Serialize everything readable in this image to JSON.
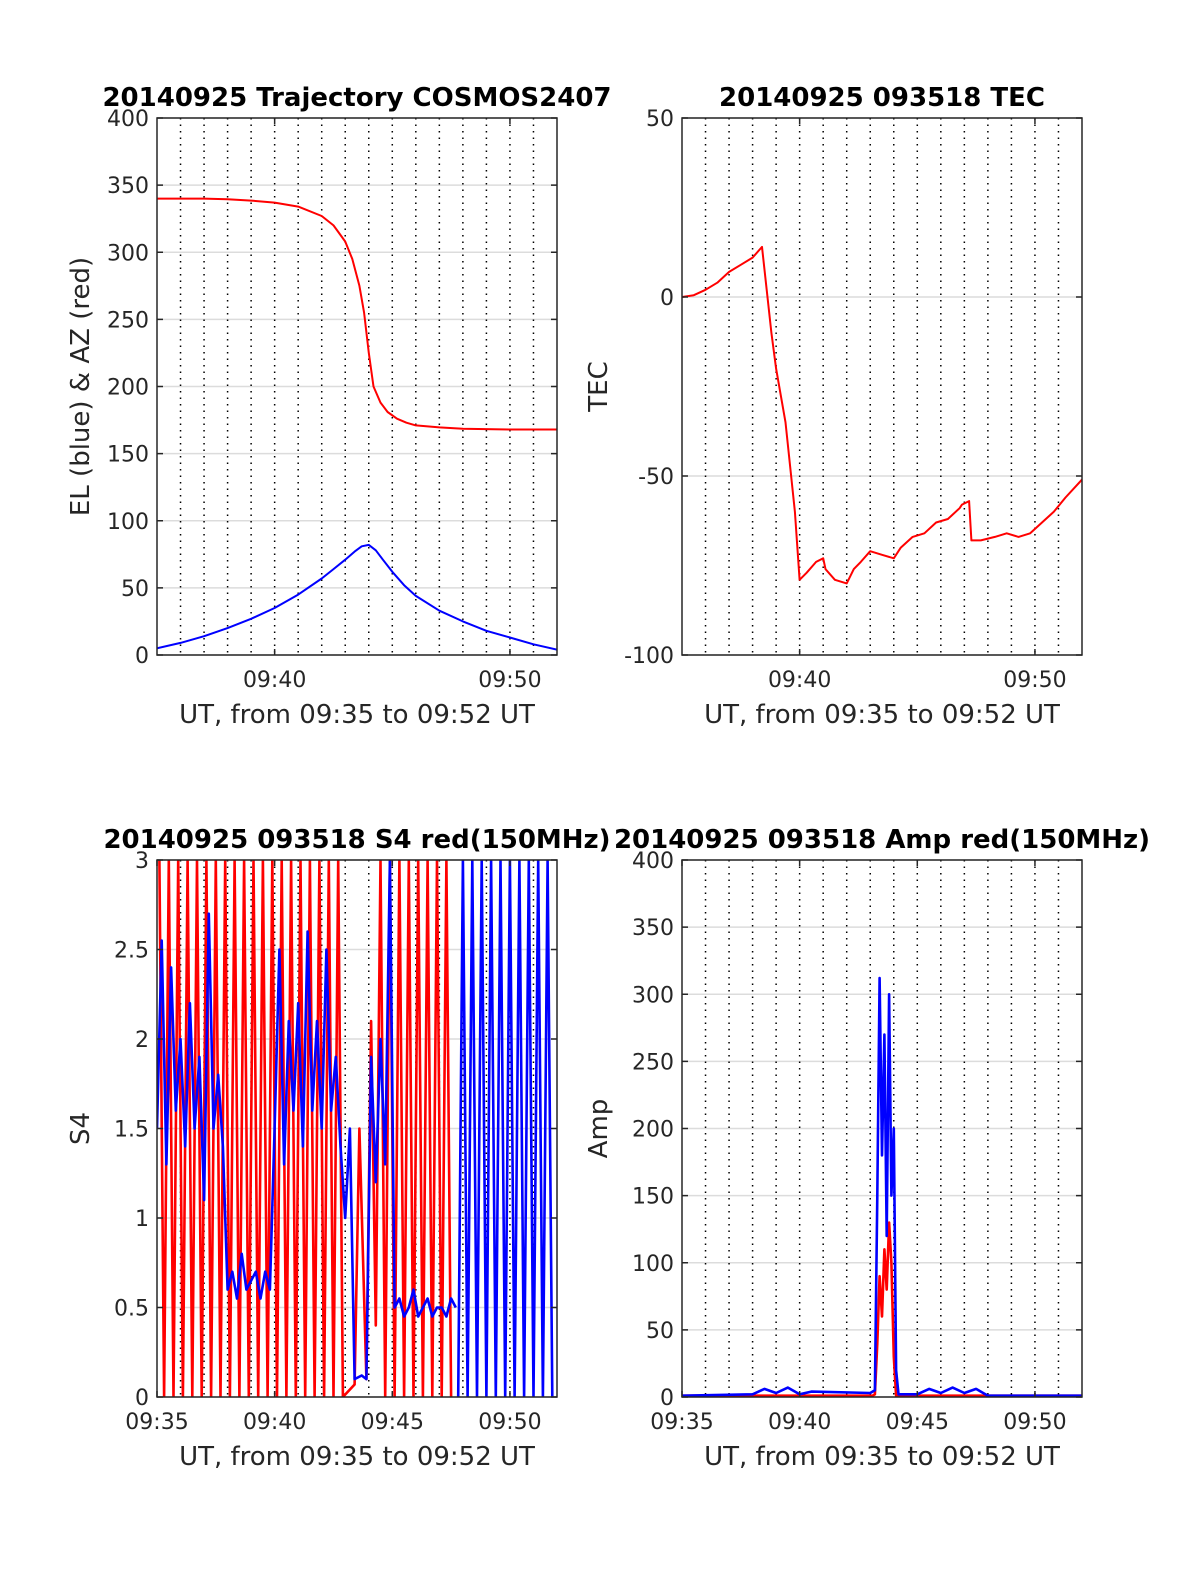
{
  "colors": {
    "red": "#ff0000",
    "blue": "#0000ff",
    "grid": "#dcdcdc",
    "axis": "#262626"
  },
  "chart_data": [
    {
      "type": "line",
      "title": "20140925 Trajectory COSMOS2407",
      "xlabel": "UT, from 09:35 to 09:52 UT",
      "ylabel": "EL (blue) & AZ (red)",
      "xlim": [
        "09:35",
        "09:52"
      ],
      "ylim": [
        0,
        400
      ],
      "x_ticks": [
        "09:40",
        "09:50"
      ],
      "y_ticks": [
        "0",
        "50",
        "100",
        "150",
        "200",
        "250",
        "300",
        "350",
        "400"
      ],
      "x_minor_minutes": [
        36,
        37,
        38,
        39,
        40,
        41,
        42,
        43,
        44,
        45,
        46,
        47,
        48,
        49,
        50,
        51
      ],
      "grid": "horizontal solid, vertical dotted every minute",
      "series": [
        {
          "color": "red",
          "x_minutes": [
            35,
            36,
            37,
            38,
            39,
            40,
            41,
            42,
            42.5,
            43,
            43.3,
            43.6,
            43.8,
            44,
            44.2,
            44.5,
            44.8,
            45.2,
            45.6,
            46,
            47,
            48,
            50,
            52
          ],
          "values": [
            340,
            340,
            340,
            339.5,
            338.5,
            337,
            334,
            327,
            320,
            308,
            295,
            275,
            255,
            225,
            200,
            188,
            181,
            176,
            173,
            171,
            169.5,
            168.5,
            168,
            168
          ]
        },
        {
          "color": "blue",
          "x_minutes": [
            35,
            36,
            37,
            38,
            39,
            40,
            41,
            42,
            42.5,
            43,
            43.4,
            43.7,
            44,
            44.3,
            44.6,
            45,
            45.5,
            46,
            47,
            48,
            49,
            50,
            51,
            52
          ],
          "values": [
            5,
            9,
            14,
            20,
            27,
            35,
            45,
            57,
            64,
            71,
            77,
            81,
            82,
            78,
            71,
            62,
            52,
            44,
            33,
            25,
            18,
            13,
            8,
            4
          ]
        }
      ]
    },
    {
      "type": "line",
      "title": "20140925 093518 TEC",
      "xlabel": "UT, from 09:35 to 09:52 UT",
      "ylabel": "TEC",
      "xlim": [
        "09:35",
        "09:52"
      ],
      "ylim": [
        -100,
        50
      ],
      "x_ticks": [
        "09:40",
        "09:50"
      ],
      "y_ticks": [
        "-100",
        "-50",
        "0",
        "50"
      ],
      "y_tick_values": [
        -100,
        -50,
        0,
        50
      ],
      "x_minor_minutes": [
        36,
        37,
        38,
        39,
        40,
        41,
        42,
        43,
        44,
        45,
        46,
        47,
        48,
        49,
        50,
        51
      ],
      "series": [
        {
          "color": "red",
          "x_minutes": [
            35,
            35.5,
            36,
            36.5,
            37,
            37.5,
            38,
            38.4,
            38.8,
            39,
            39.4,
            39.8,
            40,
            40.3,
            40.7,
            41,
            41.1,
            41.5,
            42,
            42.3,
            42.6,
            43,
            43.5,
            44,
            44.3,
            44.8,
            45.3,
            45.8,
            46.3,
            46.8,
            46.9,
            47.2,
            47.3,
            47.7,
            48.3,
            48.8,
            49.3,
            49.8,
            50.3,
            50.8,
            51.3,
            52
          ],
          "values": [
            0,
            0.5,
            2,
            4,
            7,
            9,
            11,
            14,
            -10,
            -20,
            -35,
            -60,
            -79,
            -77,
            -74,
            -73,
            -76,
            -79,
            -80,
            -76,
            -74,
            -71,
            -72,
            -73,
            -70,
            -67,
            -66,
            -63,
            -62,
            -59,
            -58,
            -57,
            -68,
            -68,
            -67,
            -66,
            -67,
            -66,
            -63,
            -60,
            -56,
            -51
          ]
        }
      ]
    },
    {
      "type": "line",
      "title": "20140925 093518 S4 red(150MHz)",
      "xlabel": "UT, from 09:35 to 09:52 UT",
      "ylabel": "S4",
      "xlim": [
        "09:35",
        "09:52"
      ],
      "ylim": [
        0,
        3
      ],
      "x_ticks": [
        "09:35",
        "09:40",
        "09:45",
        "09:50"
      ],
      "y_ticks": [
        "0",
        "0.5",
        "1",
        "1.5",
        "2",
        "2.5",
        "3"
      ],
      "y_tick_values": [
        0,
        0.5,
        1,
        1.5,
        2,
        2.5,
        3
      ],
      "x_minor_minutes": [
        36,
        37,
        38,
        39,
        40,
        41,
        42,
        43,
        44,
        45,
        46,
        47,
        48,
        49,
        50,
        51
      ],
      "series": [
        {
          "color": "red",
          "x_minutes": [
            35.1,
            35.3,
            35.5,
            35.7,
            35.9,
            36.1,
            36.3,
            36.5,
            36.7,
            36.9,
            37.1,
            37.3,
            37.5,
            37.7,
            37.9,
            38.1,
            38.3,
            38.5,
            38.7,
            38.9,
            39.1,
            39.3,
            39.5,
            39.7,
            39.9,
            40.1,
            40.3,
            40.5,
            40.7,
            40.9,
            41.1,
            41.3,
            41.5,
            41.7,
            41.9,
            42.1,
            42.3,
            42.5,
            42.7,
            42.9,
            43.4,
            43.6,
            43.9,
            44.1,
            44.3,
            44.5,
            44.7,
            44.9,
            45.1,
            45.3,
            45.5,
            45.7,
            45.9,
            46.1,
            46.3,
            46.5,
            46.7,
            46.9,
            47.1,
            47.3,
            47.5
          ],
          "values": [
            3,
            0,
            3,
            0,
            3,
            0,
            3,
            0,
            3,
            0,
            3,
            0,
            3,
            0,
            3,
            0,
            3,
            0,
            3,
            0,
            3,
            0,
            3,
            0,
            3,
            0,
            3,
            0,
            3,
            0,
            3,
            0,
            3,
            0,
            3,
            0,
            3,
            0,
            3,
            0,
            0.07,
            1.5,
            0.1,
            2.1,
            0.4,
            3,
            0,
            3,
            0,
            3,
            0,
            3,
            0,
            3,
            0,
            3,
            0,
            3,
            0,
            3,
            0
          ]
        },
        {
          "color": "blue",
          "x_minutes": [
            35,
            35.2,
            35.4,
            35.6,
            35.8,
            36,
            36.2,
            36.4,
            36.6,
            36.8,
            37,
            37.2,
            37.4,
            37.6,
            37.8,
            38,
            38.2,
            38.4,
            38.6,
            38.8,
            39,
            39.2,
            39.4,
            39.6,
            39.8,
            40,
            40.2,
            40.4,
            40.6,
            40.8,
            41,
            41.2,
            41.4,
            41.6,
            41.8,
            42,
            42.2,
            42.4,
            42.6,
            42.8,
            43,
            43.2,
            43.4,
            43.7,
            43.9,
            44.1,
            44.3,
            44.5,
            44.7,
            44.9,
            45.1,
            45.3,
            45.5,
            45.7,
            45.9,
            46.1,
            46.3,
            46.5,
            46.7,
            46.9,
            47.1,
            47.3,
            47.5,
            47.7
          ],
          "values": [
            1.5,
            2.55,
            1.3,
            2.4,
            1.6,
            2.0,
            1.4,
            2.2,
            1.5,
            1.9,
            1.1,
            2.7,
            1.5,
            1.8,
            1.4,
            0.6,
            0.7,
            0.55,
            0.8,
            0.6,
            0.65,
            0.7,
            0.55,
            0.7,
            0.6,
            1.5,
            2.5,
            1.3,
            2.1,
            1.6,
            2.2,
            1.4,
            2.6,
            1.6,
            2.1,
            1.5,
            2.5,
            1.6,
            1.9,
            1.4,
            1.0,
            1.5,
            0.1,
            0.12,
            0.1,
            1.9,
            1.2,
            2.0,
            1.3,
            3.0,
            0.5,
            0.55,
            0.45,
            0.5,
            0.6,
            0.45,
            0.5,
            0.55,
            0.45,
            0.5,
            0.5,
            0.45,
            0.55,
            0.5
          ]
        },
        {
          "color": "blue",
          "x_minutes": [
            47.8,
            48,
            48.2,
            48.4,
            48.6,
            48.8,
            49,
            49.2,
            49.4,
            49.6,
            49.8,
            50,
            50.2,
            50.4,
            50.6,
            50.8,
            51,
            51.2,
            51.4,
            51.6,
            51.8
          ],
          "values": [
            0,
            3,
            0,
            3,
            0,
            3,
            0,
            3,
            0,
            3,
            0,
            3,
            0,
            3,
            0,
            3,
            0,
            3,
            0,
            3,
            0
          ]
        }
      ]
    },
    {
      "type": "line",
      "title": "20140925 093518 Amp red(150MHz)",
      "xlabel": "UT, from 09:35 to 09:52 UT",
      "ylabel": "Amp",
      "xlim": [
        "09:35",
        "09:52"
      ],
      "ylim": [
        0,
        400
      ],
      "x_ticks": [
        "09:35",
        "09:40",
        "09:45",
        "09:50"
      ],
      "y_ticks": [
        "0",
        "50",
        "100",
        "150",
        "200",
        "250",
        "300",
        "350",
        "400"
      ],
      "y_tick_values": [
        0,
        50,
        100,
        150,
        200,
        250,
        300,
        350,
        400
      ],
      "x_minor_minutes": [
        36,
        37,
        38,
        39,
        40,
        41,
        42,
        43,
        44,
        45,
        46,
        47,
        48,
        49,
        50,
        51
      ],
      "series": [
        {
          "color": "red",
          "x_minutes": [
            35,
            43.1,
            43.2,
            43.3,
            43.4,
            43.5,
            43.6,
            43.7,
            43.8,
            43.9,
            44.0,
            44.1,
            52
          ],
          "values": [
            1,
            1,
            2,
            40,
            90,
            60,
            110,
            80,
            130,
            100,
            30,
            1,
            1
          ]
        },
        {
          "color": "blue",
          "x_minutes": [
            35,
            38,
            38.5,
            39,
            39.5,
            40,
            40.5,
            43.0,
            43.2,
            43.3,
            43.4,
            43.5,
            43.6,
            43.7,
            43.8,
            43.9,
            44.0,
            44.1,
            44.2,
            45,
            45.5,
            46,
            46.5,
            47,
            47.5,
            48,
            52
          ],
          "values": [
            1,
            2,
            6,
            3,
            7,
            2,
            4,
            3,
            5,
            150,
            312,
            180,
            270,
            120,
            300,
            150,
            200,
            20,
            2,
            2,
            6,
            3,
            7,
            3,
            6,
            1,
            1
          ]
        }
      ]
    }
  ]
}
